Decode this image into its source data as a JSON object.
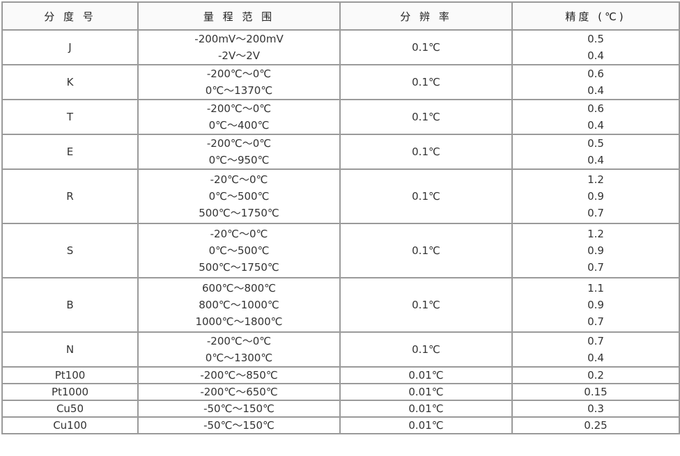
{
  "headers": [
    "分 度 号",
    "量 程 范 围",
    "分  辨  率",
    "精度 (℃)"
  ],
  "rows": [
    {
      "type": "J",
      "ranges": [
        "-200mV～200mV",
        "-2V～2V"
      ],
      "resolution": "0.1℃",
      "accuracy": [
        "0.5",
        "0.4"
      ]
    },
    {
      "type": "K",
      "ranges": [
        "-200℃～0℃",
        "0℃～1370℃"
      ],
      "resolution": "0.1℃",
      "accuracy": [
        "0.6",
        "0.4"
      ]
    },
    {
      "type": "T",
      "ranges": [
        "-200℃～0℃",
        "0℃～400℃"
      ],
      "resolution": "0.1℃",
      "accuracy": [
        "0.6",
        "0.4"
      ]
    },
    {
      "type": "E",
      "ranges": [
        "-200℃～0℃",
        "0℃～950℃"
      ],
      "resolution": "0.1℃",
      "accuracy": [
        "0.5",
        "0.4"
      ]
    },
    {
      "type": "R",
      "ranges": [
        "-20℃～0℃",
        "0℃～500℃",
        "500℃～1750℃"
      ],
      "resolution": "0.1℃",
      "accuracy": [
        "1.2",
        "0.9",
        "0.7"
      ]
    },
    {
      "type": "S",
      "ranges": [
        "-20℃～0℃",
        "0℃～500℃",
        "500℃～1750℃"
      ],
      "resolution": "0.1℃",
      "accuracy": [
        "1.2",
        "0.9",
        "0.7"
      ]
    },
    {
      "type": "B",
      "ranges": [
        "600℃～800℃",
        "800℃～1000℃",
        "1000℃～1800℃"
      ],
      "resolution": "0.1℃",
      "accuracy": [
        "1.1",
        "0.9",
        "0.7"
      ]
    },
    {
      "type": "N",
      "ranges": [
        "-200℃～0℃",
        "0℃～1300℃"
      ],
      "resolution": "0.1℃",
      "accuracy": [
        "0.7",
        "0.4"
      ]
    },
    {
      "type": "Pt100",
      "ranges": [
        "-200℃～850℃"
      ],
      "resolution": "0.01℃",
      "accuracy": [
        "0.2"
      ]
    },
    {
      "type": "Pt1000",
      "ranges": [
        "-200℃～650℃"
      ],
      "resolution": "0.01℃",
      "accuracy": [
        "0.15"
      ]
    },
    {
      "type": "Cu50",
      "ranges": [
        "-50℃～150℃"
      ],
      "resolution": "0.01℃",
      "accuracy": [
        "0.3"
      ]
    },
    {
      "type": "Cu100",
      "ranges": [
        "-50℃～150℃"
      ],
      "resolution": "0.01℃",
      "accuracy": [
        "0.25"
      ]
    }
  ]
}
